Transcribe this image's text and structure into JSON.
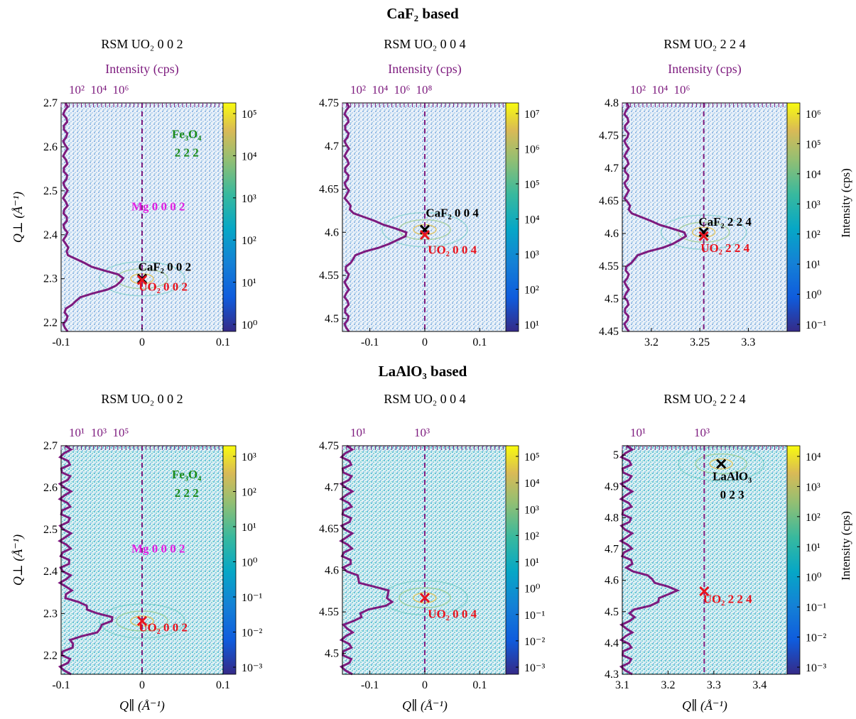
{
  "figure": {
    "group_titles": [
      "CaF₂ based",
      "LaAlO₃ based"
    ]
  },
  "chart_data": [
    {
      "type": "heatmap",
      "group": 0,
      "title": "RSM UO₂ 0 0 2",
      "top_label": "Intensity (cps)",
      "top_ticks": [
        "10²",
        "10⁴",
        "10⁶"
      ],
      "xlabel": "",
      "ylabel": "Q⊥ (Å⁻¹)",
      "xlim": [
        -0.1,
        0.1
      ],
      "ylim": [
        2.18,
        2.7
      ],
      "xticks": [
        -0.1,
        0,
        0.1
      ],
      "yticks": [
        2.2,
        2.3,
        2.4,
        2.5,
        2.6,
        2.7
      ],
      "cbar_ticks": [
        "10⁰",
        "10¹",
        "10²",
        "10³",
        "10⁴",
        "10⁵"
      ],
      "cbar_label": "",
      "markers": [
        {
          "x": 0,
          "y": 2.3,
          "color": "#000000"
        },
        {
          "x": 0,
          "y": 2.297,
          "color": "#e8141e"
        }
      ],
      "annotations": [
        {
          "lines": [
            "Fe₃O₄",
            "2 2 2"
          ],
          "x": 0.055,
          "y": 2.62,
          "color": "#1a8a1a"
        },
        {
          "lines": [
            "Mg 0 0 0 2"
          ],
          "x": 0.02,
          "y": 2.455,
          "color": "#e020e0"
        },
        {
          "lines": [
            "CaF₂ 0 0 2"
          ],
          "x": 0.028,
          "y": 2.318,
          "color": "#000000"
        },
        {
          "lines": [
            "UO₂ 0 0 2"
          ],
          "x": 0.026,
          "y": 2.273,
          "color": "#e8141e"
        }
      ]
    },
    {
      "type": "heatmap",
      "group": 0,
      "title": "RSM UO₂ 0 0 4",
      "top_label": "Intensity (cps)",
      "top_ticks": [
        "10²",
        "10⁴",
        "10⁶",
        "10⁸"
      ],
      "xlabel": "",
      "ylabel": "",
      "xlim": [
        -0.15,
        0.15
      ],
      "ylim": [
        4.485,
        4.75
      ],
      "xticks": [
        -0.1,
        0,
        0.1
      ],
      "yticks": [
        4.5,
        4.55,
        4.6,
        4.65,
        4.7,
        4.75
      ],
      "cbar_ticks": [
        "10¹",
        "10²",
        "10³",
        "10⁴",
        "10⁵",
        "10⁶",
        "10⁷"
      ],
      "cbar_label": "",
      "markers": [
        {
          "x": 0,
          "y": 4.603,
          "color": "#000000"
        },
        {
          "x": 0,
          "y": 4.597,
          "color": "#e8141e"
        }
      ],
      "annotations": [
        {
          "lines": [
            "CaF₂ 0 0 4"
          ],
          "x": 0.05,
          "y": 4.618,
          "color": "#000000"
        },
        {
          "lines": [
            "UO₂ 0 0 4"
          ],
          "x": 0.05,
          "y": 4.575,
          "color": "#e8141e"
        }
      ]
    },
    {
      "type": "heatmap",
      "group": 0,
      "title": "RSM UO₂ 2 2 4",
      "top_label": "Intensity (cps)",
      "top_ticks": [
        "10²",
        "10⁴",
        "10⁶"
      ],
      "xlabel": "",
      "ylabel": "",
      "xlim": [
        3.17,
        3.34
      ],
      "ylim": [
        4.45,
        4.8
      ],
      "xticks": [
        3.2,
        3.25,
        3.3
      ],
      "yticks": [
        4.45,
        4.5,
        4.55,
        4.6,
        4.65,
        4.7,
        4.75,
        4.8
      ],
      "cbar_ticks": [
        "10⁻¹",
        "10⁰",
        "10¹",
        "10²",
        "10³",
        "10⁴",
        "10⁵",
        "10⁶"
      ],
      "cbar_label": "Intensity (cps)",
      "markers": [
        {
          "x": 3.254,
          "y": 4.602,
          "color": "#000000"
        },
        {
          "x": 3.254,
          "y": 4.596,
          "color": "#e8141e"
        }
      ],
      "annotations": [
        {
          "lines": [
            "CaF₂ 2 2 4"
          ],
          "x": 3.276,
          "y": 4.612,
          "color": "#000000"
        },
        {
          "lines": [
            "UO₂ 2 2 4"
          ],
          "x": 3.276,
          "y": 4.572,
          "color": "#e8141e"
        }
      ]
    },
    {
      "type": "heatmap",
      "group": 1,
      "title": "RSM UO₂ 0 0 2",
      "top_label": "",
      "top_ticks": [
        "10¹",
        "10³",
        "10⁵"
      ],
      "xlabel": "Q∥ (Å⁻¹)",
      "ylabel": "Q⊥ (Å⁻¹)",
      "xlim": [
        -0.1,
        0.1
      ],
      "ylim": [
        2.155,
        2.7
      ],
      "xticks": [
        -0.1,
        0,
        0.1
      ],
      "yticks": [
        2.2,
        2.3,
        2.4,
        2.5,
        2.6,
        2.7
      ],
      "cbar_ticks": [
        "10⁻³",
        "10⁻²",
        "10⁻¹",
        "10⁰",
        "10¹",
        "10²",
        "10³"
      ],
      "cbar_label": "",
      "markers": [
        {
          "x": 0,
          "y": 2.282,
          "color": "#e8141e"
        }
      ],
      "annotations": [
        {
          "lines": [
            "Fe₃O₄",
            "2 2 2"
          ],
          "x": 0.055,
          "y": 2.622,
          "color": "#1a8a1a"
        },
        {
          "lines": [
            "Mg 0 0 0 2"
          ],
          "x": 0.02,
          "y": 2.445,
          "color": "#e020e0"
        },
        {
          "lines": [
            "UO₂ 0 0 2"
          ],
          "x": 0.026,
          "y": 2.257,
          "color": "#e8141e"
        }
      ]
    },
    {
      "type": "heatmap",
      "group": 1,
      "title": "RSM UO₂ 0 0 4",
      "top_label": "",
      "top_ticks": [
        "10¹",
        "10³"
      ],
      "xlabel": "Q∥ (Å⁻¹)",
      "ylabel": "",
      "xlim": [
        -0.15,
        0.15
      ],
      "ylim": [
        4.475,
        4.75
      ],
      "xticks": [
        -0.1,
        0,
        0.1
      ],
      "yticks": [
        4.5,
        4.55,
        4.6,
        4.65,
        4.7,
        4.75
      ],
      "cbar_ticks": [
        "10⁻³",
        "10⁻²",
        "10⁻¹",
        "10⁰",
        "10¹",
        "10²",
        "10³",
        "10⁴",
        "10⁵"
      ],
      "cbar_label": "",
      "markers": [
        {
          "x": 0,
          "y": 4.567,
          "color": "#e8141e"
        }
      ],
      "annotations": [
        {
          "lines": [
            "UO₂ 0 0 4"
          ],
          "x": 0.05,
          "y": 4.543,
          "color": "#e8141e"
        }
      ]
    },
    {
      "type": "heatmap",
      "group": 1,
      "title": "RSM UO₂ 2 2 4",
      "top_label": "",
      "top_ticks": [
        "10¹",
        "10³"
      ],
      "xlabel": "Q∥ (Å⁻¹)",
      "ylabel": "",
      "xlim": [
        3.1,
        3.46
      ],
      "ylim": [
        4.3,
        5.03
      ],
      "xticks": [
        3.1,
        3.2,
        3.3,
        3.4
      ],
      "yticks": [
        4.3,
        4.4,
        4.5,
        4.6,
        4.7,
        4.8,
        4.9,
        5.0
      ],
      "cbar_ticks": [
        "10⁻³",
        "10⁻²",
        "10⁻¹",
        "10⁰",
        "10¹",
        "10²",
        "10³",
        "10⁴"
      ],
      "cbar_label": "Intensity (cps)",
      "markers": [
        {
          "x": 3.316,
          "y": 4.972,
          "color": "#000000"
        },
        {
          "x": 3.279,
          "y": 4.565,
          "color": "#e8141e"
        }
      ],
      "annotations": [
        {
          "lines": [
            "LaAlO₃",
            "0 2 3"
          ],
          "x": 3.34,
          "y": 4.92,
          "color": "#000000"
        },
        {
          "lines": [
            "UO₂ 2 2 4"
          ],
          "x": 3.33,
          "y": 4.528,
          "color": "#e8141e"
        }
      ]
    }
  ]
}
